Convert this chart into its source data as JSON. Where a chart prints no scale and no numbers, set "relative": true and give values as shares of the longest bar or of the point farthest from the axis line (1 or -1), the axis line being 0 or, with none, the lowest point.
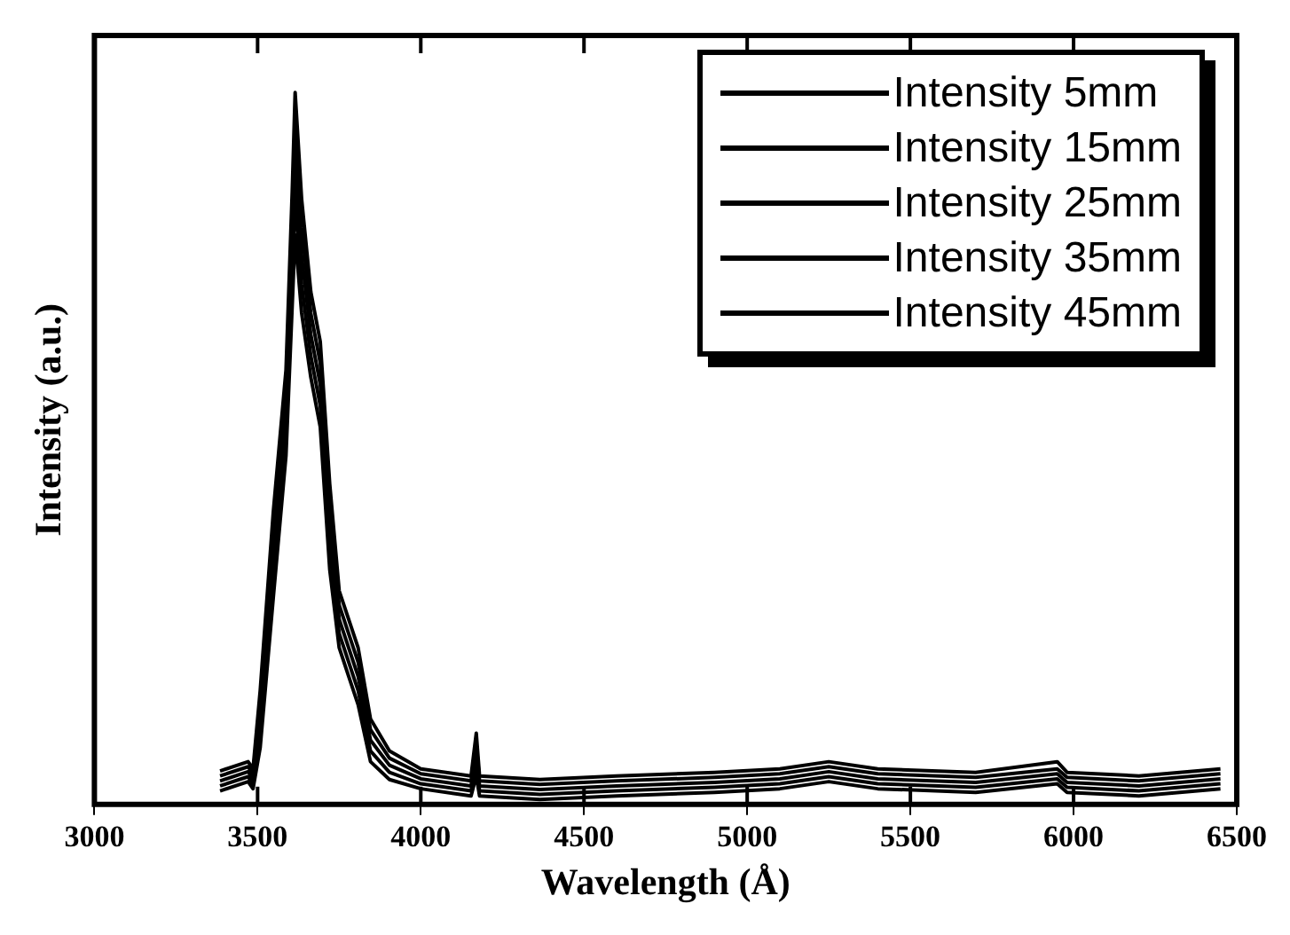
{
  "chart_data": {
    "type": "line",
    "xlabel": "Wavelength (Å)",
    "ylabel": "Intensity (a.u.)",
    "relative": true,
    "xlim": [
      3000,
      6500
    ],
    "xticks": [
      3000,
      3500,
      4000,
      4500,
      5000,
      5500,
      6000,
      6500
    ],
    "grid": false,
    "legend": "top right",
    "marker": "none",
    "line_style": "solid",
    "x": [
      3385,
      3471,
      3486,
      3508,
      3548,
      3587,
      3606,
      3615,
      3635,
      3663,
      3692,
      3721,
      3750,
      3808,
      3846,
      3904,
      4000,
      4154,
      4170,
      4180,
      4365,
      4600,
      4900,
      5100,
      5250,
      5400,
      5700,
      5950,
      5980,
      6200,
      6450
    ],
    "series": [
      {
        "name": "Intensity 5mm",
        "color": "#000000",
        "values": [
          0.047,
          0.06,
          0.05,
          0.16,
          0.41,
          0.61,
          0.86,
          1.0,
          0.85,
          0.72,
          0.65,
          0.45,
          0.3,
          0.22,
          0.12,
          0.075,
          0.05,
          0.04,
          0.1,
          0.04,
          0.035,
          0.04,
          0.045,
          0.05,
          0.06,
          0.05,
          0.045,
          0.06,
          0.045,
          0.04,
          0.05
        ]
      },
      {
        "name": "Intensity 15mm",
        "color": "#000000",
        "values": [
          0.04,
          0.053,
          0.043,
          0.14,
          0.38,
          0.58,
          0.82,
          0.95,
          0.81,
          0.69,
          0.62,
          0.42,
          0.28,
          0.2,
          0.105,
          0.065,
          0.043,
          0.033,
          0.085,
          0.033,
          0.028,
          0.033,
          0.038,
          0.043,
          0.053,
          0.043,
          0.038,
          0.05,
          0.038,
          0.033,
          0.043
        ]
      },
      {
        "name": "Intensity 25mm",
        "color": "#000000",
        "values": [
          0.033,
          0.046,
          0.036,
          0.12,
          0.35,
          0.55,
          0.78,
          0.9,
          0.77,
          0.66,
          0.59,
          0.39,
          0.26,
          0.18,
          0.09,
          0.055,
          0.036,
          0.026,
          0.07,
          0.026,
          0.021,
          0.026,
          0.031,
          0.036,
          0.046,
          0.036,
          0.031,
          0.043,
          0.031,
          0.026,
          0.036
        ]
      },
      {
        "name": "Intensity 35mm",
        "color": "#000000",
        "values": [
          0.026,
          0.039,
          0.029,
          0.1,
          0.32,
          0.52,
          0.74,
          0.85,
          0.73,
          0.63,
          0.56,
          0.36,
          0.24,
          0.16,
          0.075,
          0.045,
          0.029,
          0.019,
          0.055,
          0.019,
          0.014,
          0.019,
          0.024,
          0.029,
          0.039,
          0.029,
          0.024,
          0.036,
          0.024,
          0.019,
          0.029
        ]
      },
      {
        "name": "Intensity 45mm",
        "color": "#000000",
        "values": [
          0.019,
          0.032,
          0.022,
          0.08,
          0.29,
          0.49,
          0.7,
          0.8,
          0.69,
          0.6,
          0.53,
          0.33,
          0.22,
          0.14,
          0.06,
          0.035,
          0.022,
          0.012,
          0.04,
          0.012,
          0.007,
          0.012,
          0.017,
          0.022,
          0.032,
          0.022,
          0.017,
          0.029,
          0.017,
          0.012,
          0.022
        ]
      }
    ]
  }
}
